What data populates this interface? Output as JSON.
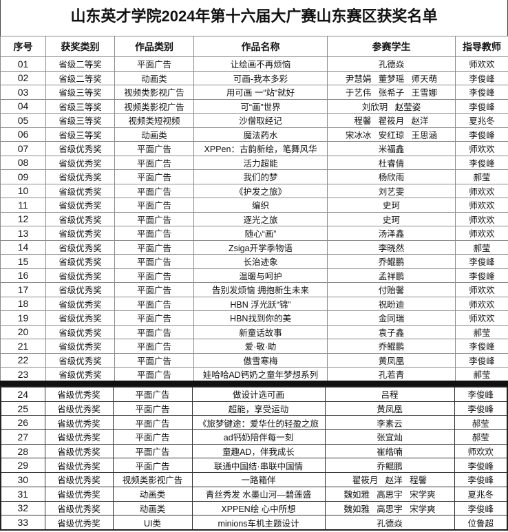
{
  "title": "山东英才学院2024年第十六届大广赛山东赛区获奖名单",
  "headers": [
    "序号",
    "获奖类别",
    "作品类别",
    "作品名称",
    "参赛学生",
    "指导教师"
  ],
  "rows": [
    [
      "01",
      "省级二等奖",
      "平面广告",
      "让绘画不再烦恼",
      "孔德焱",
      "师欢欢"
    ],
    [
      "02",
      "省级二等奖",
      "动画类",
      "可画-我本多彩",
      "尹慧娟   董梦瑶   师天萌",
      "李俊峰"
    ],
    [
      "03",
      "省级三等奖",
      "视频类影视广告",
      "用可画 一“站“就好",
      "于艺伟   张希子   王雪娜",
      "李俊峰"
    ],
    [
      "04",
      "省级三等奖",
      "视频类影视广告",
      "可“画”世界",
      "刘欣玥   赵莹姿",
      "李俊峰"
    ],
    [
      "05",
      "省级三等奖",
      "视频类短视频",
      "沙僧取经记",
      "程馨   翟筱月   赵洋",
      "夏兆冬"
    ],
    [
      "06",
      "省级三等奖",
      "动画类",
      "魔法药水",
      "宋冰冰   安红琼   王思涵",
      "李俊峰"
    ],
    [
      "07",
      "省级优秀奖",
      "平面广告",
      "XPPen：古韵新绘，笔舞风华",
      "米福鑫",
      "师欢欢"
    ],
    [
      "08",
      "省级优秀奖",
      "平面广告",
      "活力超能",
      "杜睿倩",
      "李俊峰"
    ],
    [
      "09",
      "省级优秀奖",
      "平面广告",
      "我们的梦",
      "杨欣雨",
      "郝莹"
    ],
    [
      "10",
      "省级优秀奖",
      "平面广告",
      "《护发之旅》",
      "刘艺雯",
      "师欢欢"
    ],
    [
      "11",
      "省级优秀奖",
      "平面广告",
      "编织",
      "史珂",
      "师欢欢"
    ],
    [
      "12",
      "省级优秀奖",
      "平面广告",
      "逐光之旅",
      "史珂",
      "师欢欢"
    ],
    [
      "13",
      "省级优秀奖",
      "平面广告",
      "随心“画”",
      "汤泽鑫",
      "师欢欢"
    ],
    [
      "14",
      "省级优秀奖",
      "平面广告",
      "Zsiga开学季物语",
      "李晓然",
      "郝莹"
    ],
    [
      "15",
      "省级优秀奖",
      "平面广告",
      "长治迹象",
      "乔鲲鹏",
      "李俊峰"
    ],
    [
      "16",
      "省级优秀奖",
      "平面广告",
      "温暖与呵护",
      "孟祥鹏",
      "李俊峰"
    ],
    [
      "17",
      "省级优秀奖",
      "平面广告",
      "告别发烦恼 拥抱新生未来",
      "付贻馨",
      "师欢欢"
    ],
    [
      "18",
      "省级优秀奖",
      "平面广告",
      "HBN 浮光跃“锦”",
      "祝盼迪",
      "师欢欢"
    ],
    [
      "19",
      "省级优秀奖",
      "平面广告",
      "HBN找到你的美",
      "金同瑞",
      "师欢欢"
    ],
    [
      "20",
      "省级优秀奖",
      "平面广告",
      "新童话故事",
      "袁子鑫",
      "郝莹"
    ],
    [
      "21",
      "省级优秀奖",
      "平面广告",
      "爱·敬·助",
      "乔鲲鹏",
      "李俊峰"
    ],
    [
      "22",
      "省级优秀奖",
      "平面广告",
      "傲雪寒梅",
      "黄凤凰",
      "李俊峰"
    ],
    [
      "23",
      "省级优秀奖",
      "平面广告",
      "娃哈哈AD钙奶之童年梦想系列",
      "孔若青",
      "郝莹"
    ]
  ],
  "rows2": [
    [
      "24",
      "省级优秀奖",
      "平面广告",
      "做设计选可画",
      "吕程",
      "李俊峰"
    ],
    [
      "25",
      "省级优秀奖",
      "平面广告",
      "超能，享受运动",
      "黄凤凰",
      "李俊峰"
    ],
    [
      "26",
      "省级优秀奖",
      "平面广告",
      "《旅梦键途：爱华仕的轻盈之旅",
      "李素云",
      "郝莹"
    ],
    [
      "27",
      "省级优秀奖",
      "平面广告",
      "ad钙奶陪伴每一刻",
      "张宜灿",
      "郝莹"
    ],
    [
      "28",
      "省级优秀奖",
      "平面广告",
      "童趣AD，伴我成长",
      "崔皓喃",
      "师欢欢"
    ],
    [
      "29",
      "省级优秀奖",
      "平面广告",
      "联通中国结·串联中国情",
      "乔鲲鹏",
      "李俊峰"
    ],
    [
      "30",
      "省级优秀奖",
      "视频类影视广告",
      "一路箱伴",
      "翟筱月   赵洋   程馨",
      "李俊峰"
    ],
    [
      "31",
      "省级优秀奖",
      "动画类",
      "青丝秀发 水墨山河—碧莲盛",
      "魏如雅   高思宇   宋学爽",
      "夏兆冬"
    ],
    [
      "32",
      "省级优秀奖",
      "动画类",
      "XPPEN绘 心中所想",
      "魏如雅   高思宇   宋学爽",
      "李俊峰"
    ],
    [
      "33",
      "省级优秀奖",
      "UI类",
      "minions车机主题设计",
      "孔德焱",
      "位鲁超"
    ]
  ]
}
